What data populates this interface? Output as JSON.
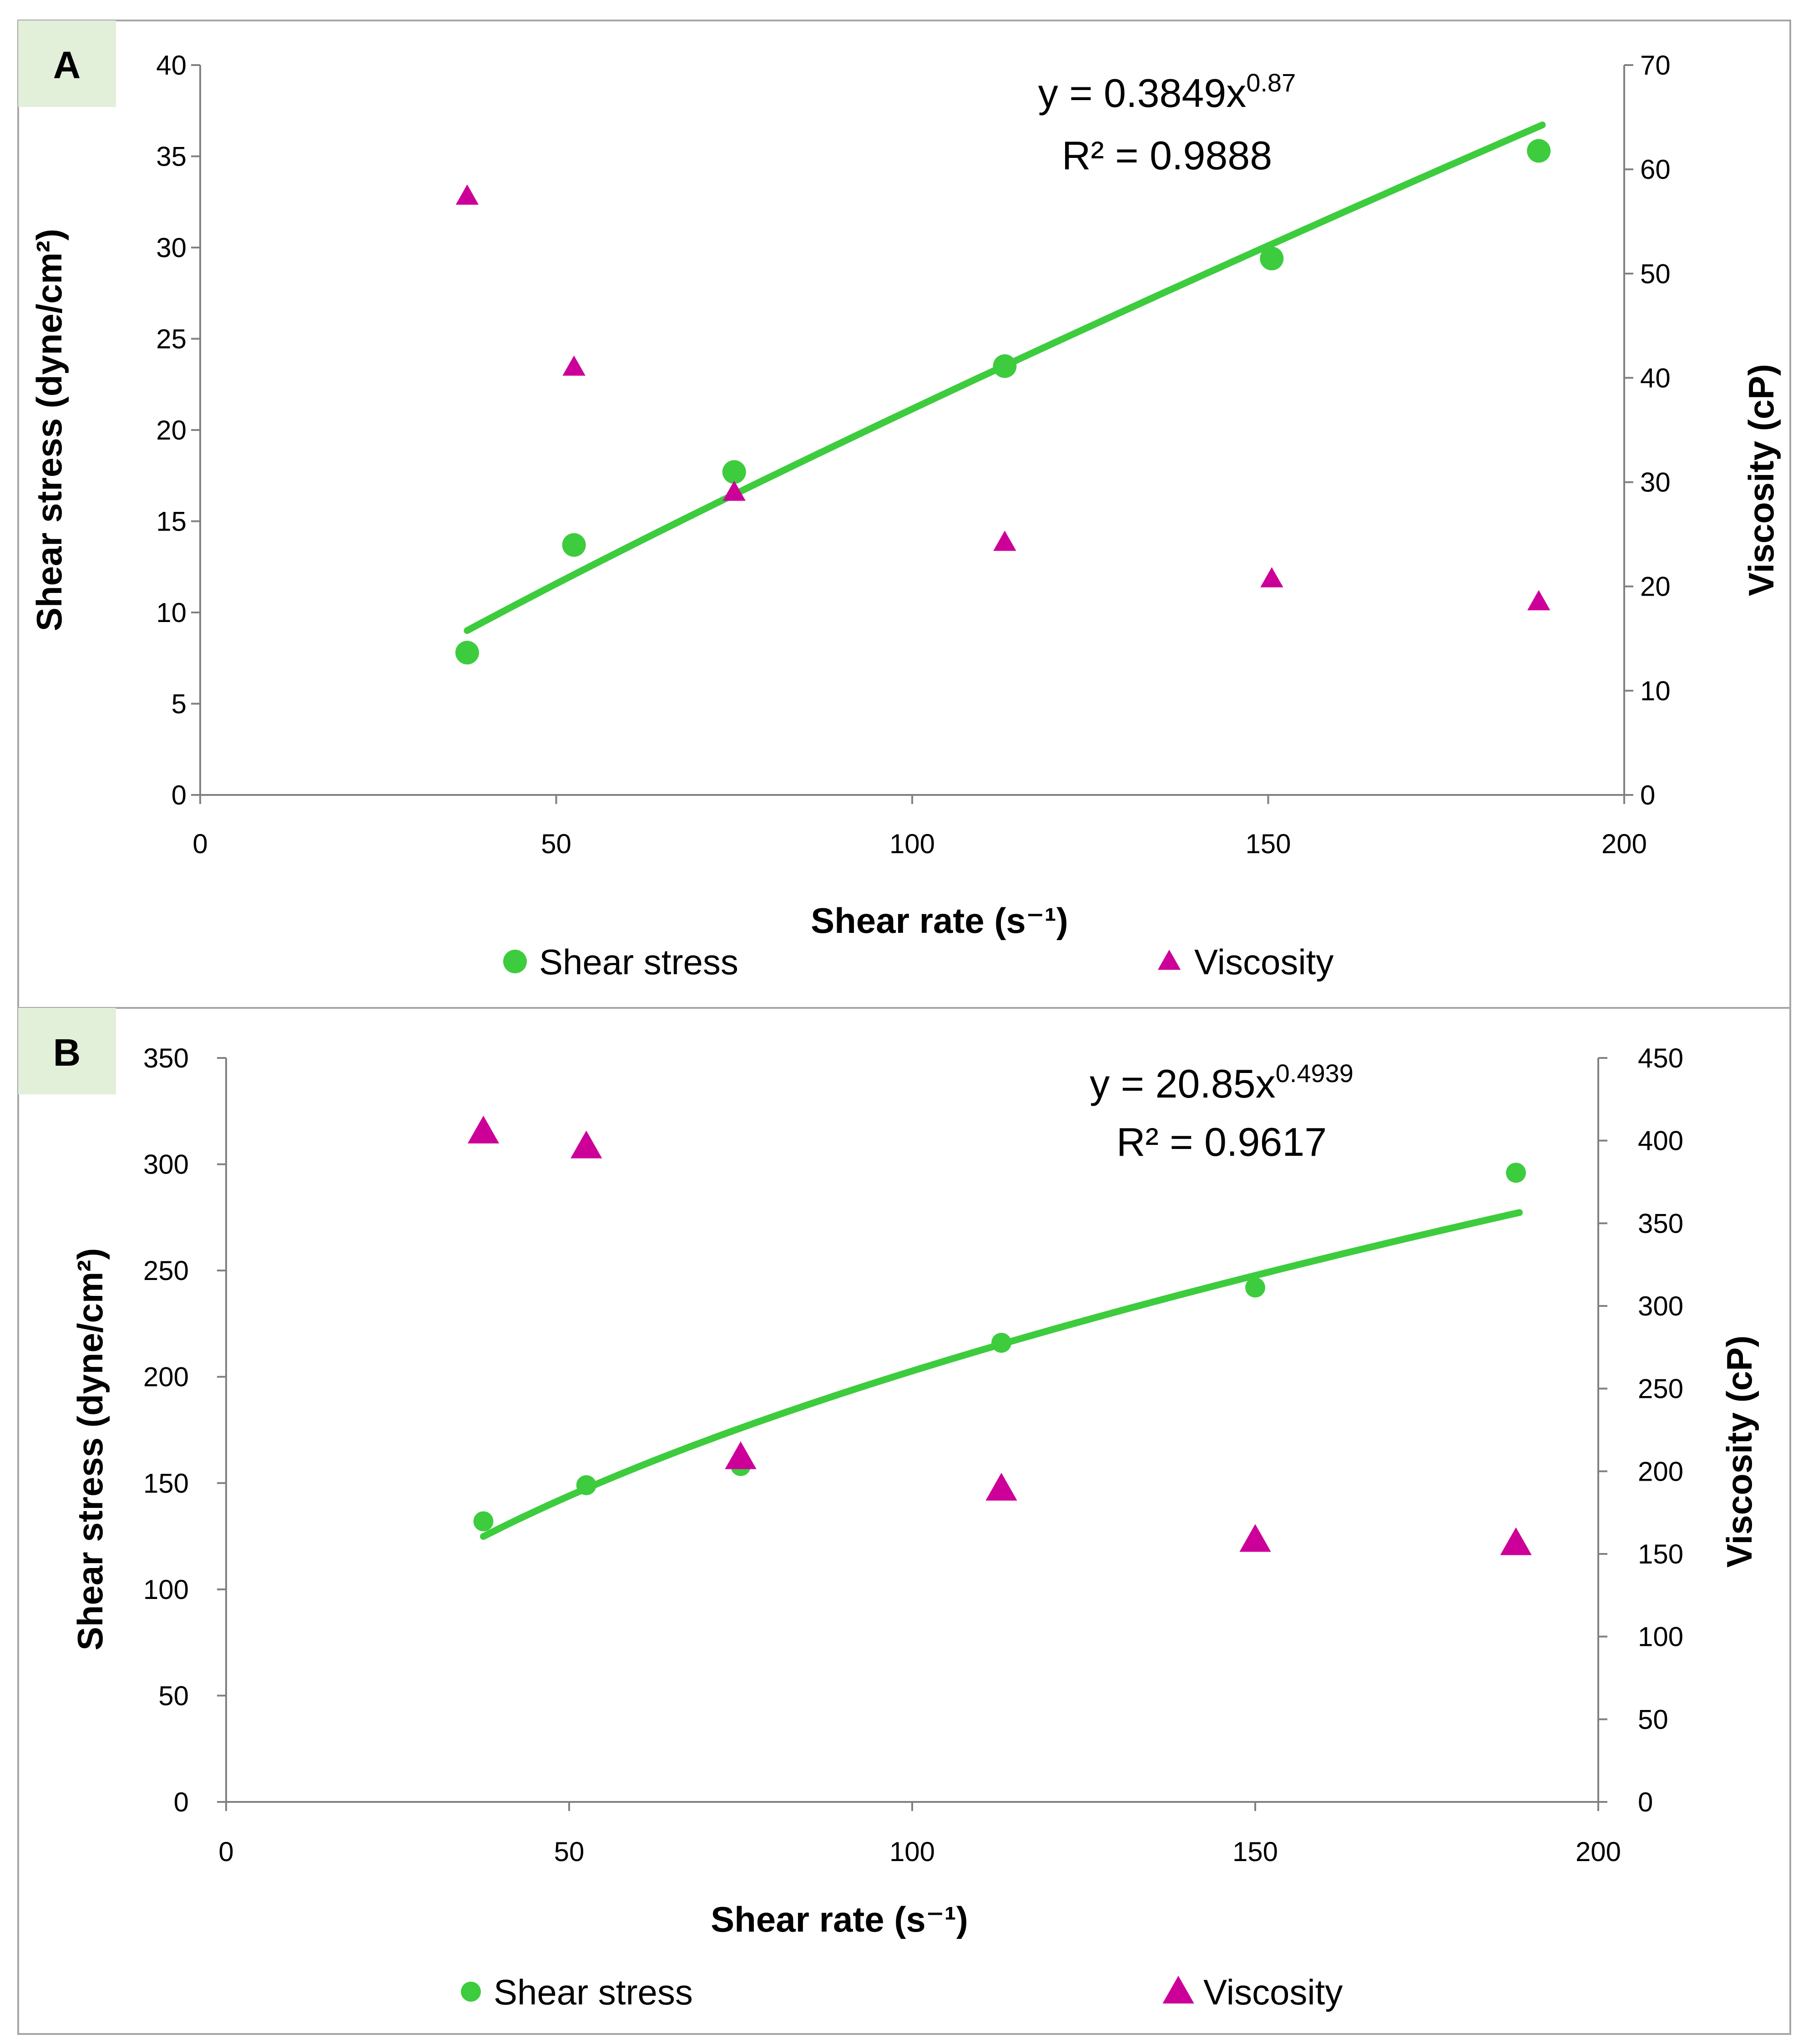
{
  "colors": {
    "shear_stress": "#3DCC3D",
    "viscosity": "#CC0099",
    "label_bg": "#E2EFD9",
    "frame": "#A6A6A6",
    "axis": "#808080"
  },
  "chart_data": [
    {
      "panel": "A",
      "type": "scatter",
      "xlabel": "Shear rate (s⁻¹)",
      "ylabel": "Shear stress (dyne/cm²)",
      "y2label": "Viscosity (cP)",
      "xlim": [
        0,
        200
      ],
      "ylim": [
        0,
        40
      ],
      "y2lim": [
        0,
        70
      ],
      "xticks": [
        0,
        50,
        100,
        150,
        200
      ],
      "yticks": [
        0,
        5,
        10,
        15,
        20,
        25,
        30,
        35,
        40
      ],
      "y2ticks": [
        0,
        10,
        20,
        30,
        40,
        50,
        60,
        70
      ],
      "grid": false,
      "trendline": {
        "type": "power",
        "a": 0.3849,
        "b": 0.87,
        "x_start": 37.5,
        "x_end": 188.5
      },
      "equation": {
        "prefix": "y = 0.3849x",
        "exponent": "0.87",
        "r2": "R² = 0.9888"
      },
      "series": [
        {
          "name": "Shear stress",
          "axis": "left",
          "marker": "circle",
          "x": [
            37.5,
            52.5,
            75,
            113,
            150.5,
            188
          ],
          "y": [
            7.8,
            13.7,
            17.7,
            23.5,
            29.4,
            35.3
          ]
        },
        {
          "name": "Viscosity",
          "axis": "right",
          "marker": "triangle",
          "x": [
            37.5,
            52.5,
            75,
            113,
            150.5,
            188
          ],
          "y": [
            57.5,
            41.1,
            29.1,
            24.3,
            20.8,
            18.6
          ]
        }
      ],
      "legend": [
        "Shear stress",
        "Viscosity"
      ]
    },
    {
      "panel": "B",
      "type": "scatter",
      "xlabel": "Shear rate (s⁻¹)",
      "ylabel": "Shear stress (dyne/cm²)",
      "y2label": "Viscosity (cP)",
      "xlim": [
        0,
        200
      ],
      "ylim": [
        0,
        350
      ],
      "y2lim": [
        0,
        450
      ],
      "xticks": [
        0,
        50,
        100,
        150,
        200
      ],
      "yticks": [
        0,
        50,
        100,
        150,
        200,
        250,
        300,
        350
      ],
      "y2ticks": [
        0,
        50,
        100,
        150,
        200,
        250,
        300,
        350,
        400,
        450
      ],
      "grid": false,
      "trendline": {
        "type": "power",
        "a": 20.85,
        "b": 0.4939,
        "x_start": 37.5,
        "x_end": 188.5
      },
      "equation": {
        "prefix": "y = 20.85x",
        "exponent": "0.4939",
        "r2": "R² = 0.9617"
      },
      "series": [
        {
          "name": "Shear stress",
          "axis": "left",
          "marker": "circle",
          "x": [
            37.5,
            52.5,
            75,
            113,
            150,
            188
          ],
          "y": [
            132,
            149,
            158,
            216,
            242,
            296
          ]
        },
        {
          "name": "Viscosity",
          "axis": "right",
          "marker": "triangle",
          "x": [
            37.5,
            52.5,
            75,
            113,
            150,
            188
          ],
          "y": [
            406,
            397,
            209,
            190,
            159,
            157
          ]
        }
      ],
      "legend": [
        "Shear stress",
        "Viscosity"
      ]
    }
  ]
}
